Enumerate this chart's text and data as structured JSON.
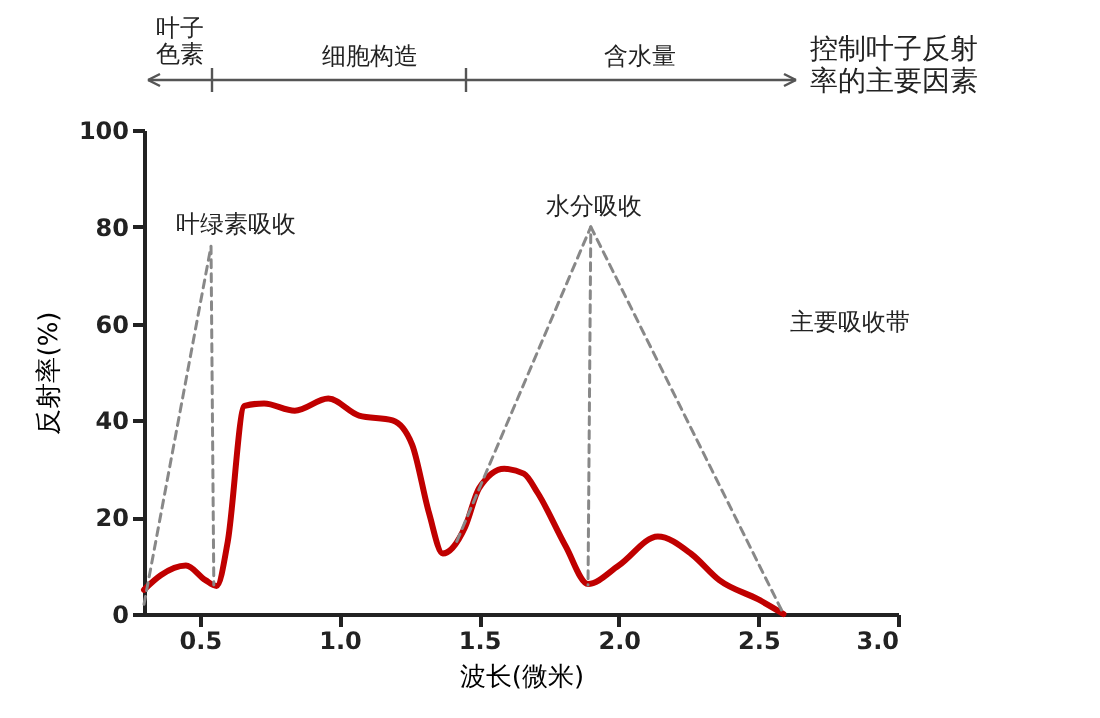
{
  "chart_data": {
    "type": "line",
    "xlabel": "波长(微米)",
    "ylabel": "反射率(%)",
    "xlim": [
      0.3,
      3.0
    ],
    "xticks": [
      {
        "value": 0.5,
        "label": "0.5"
      },
      {
        "value": 1.0,
        "label": "1.0"
      },
      {
        "value": 1.5,
        "label": "1.5"
      },
      {
        "value": 2.0,
        "label": "2.0"
      },
      {
        "value": 2.5,
        "label": "2.5"
      },
      {
        "value": 3.0,
        "label": "3.0"
      }
    ],
    "ylim": [
      0,
      100
    ],
    "yticks": [
      0,
      20,
      40,
      60,
      80,
      100
    ],
    "grid": false,
    "series": [
      {
        "color": "#c00000",
        "line_style": "solid",
        "x": [
          0.3,
          0.36,
          0.45,
          0.52,
          0.56,
          0.6,
          0.66,
          0.73,
          0.84,
          0.96,
          1.07,
          1.19,
          1.26,
          1.32,
          1.37,
          1.45,
          1.5,
          1.59,
          1.66,
          1.71,
          1.81,
          1.89,
          2.0,
          2.14,
          2.26,
          2.36,
          2.5,
          2.59
        ],
        "values": [
          5,
          8,
          10,
          7,
          5.8,
          15,
          43,
          43.5,
          42,
          44.5,
          41,
          40,
          35,
          21,
          12.5,
          18,
          26,
          30,
          29,
          25,
          14,
          6.2,
          10,
          16,
          12.4,
          7,
          3,
          0
        ]
      },
      {
        "color": "#888888",
        "line_style": "dashed",
        "x": [
          0.3,
          0.54,
          0.55
        ],
        "values": [
          2,
          76,
          6
        ]
      },
      {
        "color": "#888888",
        "line_style": "dashed",
        "x": [
          1.42,
          1.9,
          1.89
        ],
        "values": [
          15,
          80,
          6
        ]
      },
      {
        "color": "#888888",
        "line_style": "dashed",
        "x": [
          1.9,
          2.59
        ],
        "values": [
          80,
          0
        ]
      }
    ],
    "annotations": [
      "叶子色素",
      "细胞构造",
      "含水量",
      "控制叶子反射率的主要因素",
      "叶绿素吸收",
      "水分吸收",
      "主要吸收带"
    ]
  }
}
